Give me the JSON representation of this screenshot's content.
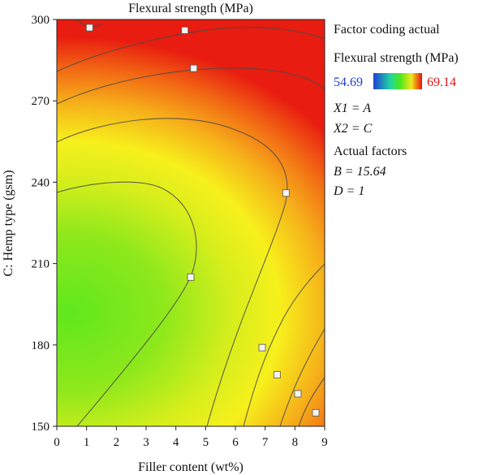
{
  "chart_data": {
    "type": "heatmap",
    "title": "Flexural strength (MPa)",
    "xlabel": "Filler content (wt%)",
    "ylabel": "C: Hemp type (gsm)",
    "xlim": [
      0,
      9
    ],
    "ylim": [
      150,
      300
    ],
    "x_ticks": [
      "0",
      "1",
      "2",
      "3",
      "4",
      "5",
      "6",
      "7",
      "8",
      "9"
    ],
    "y_ticks": [
      "150",
      "180",
      "210",
      "240",
      "270",
      "300"
    ],
    "legend": {
      "heading": "Factor coding actual",
      "response": "Flexural strength (MPa)",
      "min_label": "54.69",
      "max_label": "69.14",
      "min_color": "#1f3fd6",
      "max_color": "#e81010",
      "mapping_x": "X1 = A",
      "mapping_y": "X2 = C",
      "actual_factors_heading": "Actual factors",
      "factor_b": "B = 15.64",
      "factor_d": "D = 1"
    },
    "contour_label_positions": [
      {
        "x": 1.1,
        "y": 297
      },
      {
        "x": 4.3,
        "y": 296
      },
      {
        "x": 4.6,
        "y": 282
      },
      {
        "x": 7.7,
        "y": 236
      },
      {
        "x": 4.5,
        "y": 205
      },
      {
        "x": 6.9,
        "y": 179
      },
      {
        "x": 7.4,
        "y": 169
      },
      {
        "x": 8.1,
        "y": 162
      },
      {
        "x": 8.7,
        "y": 155
      }
    ],
    "grid": false
  }
}
